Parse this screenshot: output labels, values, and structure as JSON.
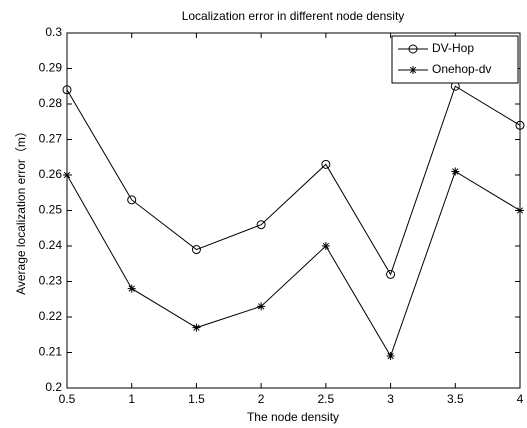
{
  "chart_data": {
    "type": "line",
    "title": "Localization error in different node density",
    "x_label": "The node density",
    "y_label": "Average localization error（m）",
    "x": [
      0.5,
      1,
      1.5,
      2,
      2.5,
      3,
      3.5,
      4
    ],
    "series": [
      {
        "name": "DV-Hop",
        "color": "#000000",
        "marker": "circle",
        "values": [
          0.284,
          0.253,
          0.239,
          0.246,
          0.263,
          0.232,
          0.285,
          0.274
        ]
      },
      {
        "name": "Onehop-dv",
        "color": "#000000",
        "marker": "asterisk",
        "values": [
          0.26,
          0.228,
          0.217,
          0.223,
          0.24,
          0.209,
          0.261,
          0.25
        ]
      }
    ],
    "xlim": [
      0.5,
      4
    ],
    "xticks": [
      0.5,
      1,
      1.5,
      2,
      2.5,
      3,
      3.5,
      4
    ],
    "ylim": [
      0.2,
      0.3
    ],
    "yticks": [
      0.2,
      0.21,
      0.22,
      0.23,
      0.24,
      0.25,
      0.26,
      0.27,
      0.28,
      0.29,
      0.3
    ],
    "grid": false,
    "legend": "upper right"
  }
}
